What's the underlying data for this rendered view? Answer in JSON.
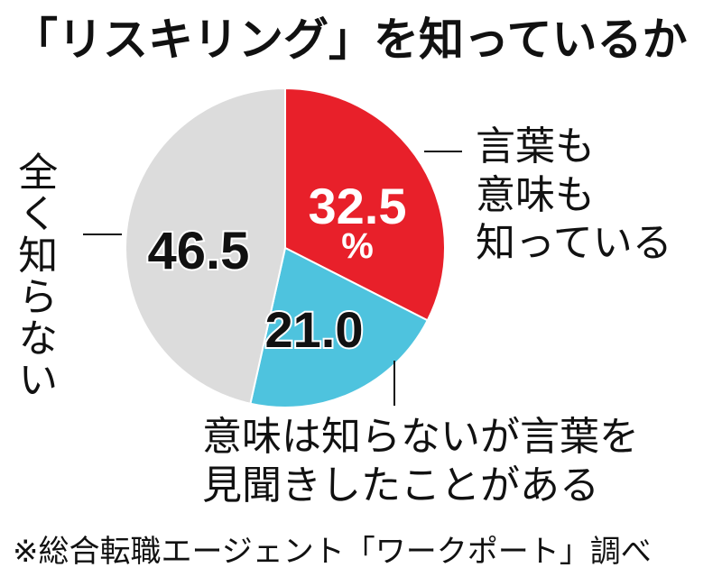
{
  "title": "「リスキリング」を知っているか",
  "source": "※総合転職エージェント「ワークポート」調べ",
  "chart_data": {
    "type": "pie",
    "start_angle_deg": 0,
    "direction": "clockwise",
    "slices": [
      {
        "label": "言葉も意味も知っている",
        "value": 32.5,
        "value_text": "32.5",
        "unit_text": "%",
        "color": "#e8202a",
        "text_color": "#ffffff"
      },
      {
        "label": "意味は知らないが言葉を見聞きしたことがある",
        "value": 21.0,
        "value_text": "21.0",
        "unit_text": "",
        "color": "#4ec3de",
        "text_color": "#111111"
      },
      {
        "label": "全く知らない",
        "value": 46.5,
        "value_text": "46.5",
        "unit_text": "",
        "color": "#dcdcdc",
        "text_color": "#111111"
      }
    ]
  },
  "labels": {
    "know_both": "言葉も\n意味も\n知っている",
    "heard_only": "意味は知らないが言葉を\n見聞きしたことがある",
    "not_know": "全く知らない"
  }
}
